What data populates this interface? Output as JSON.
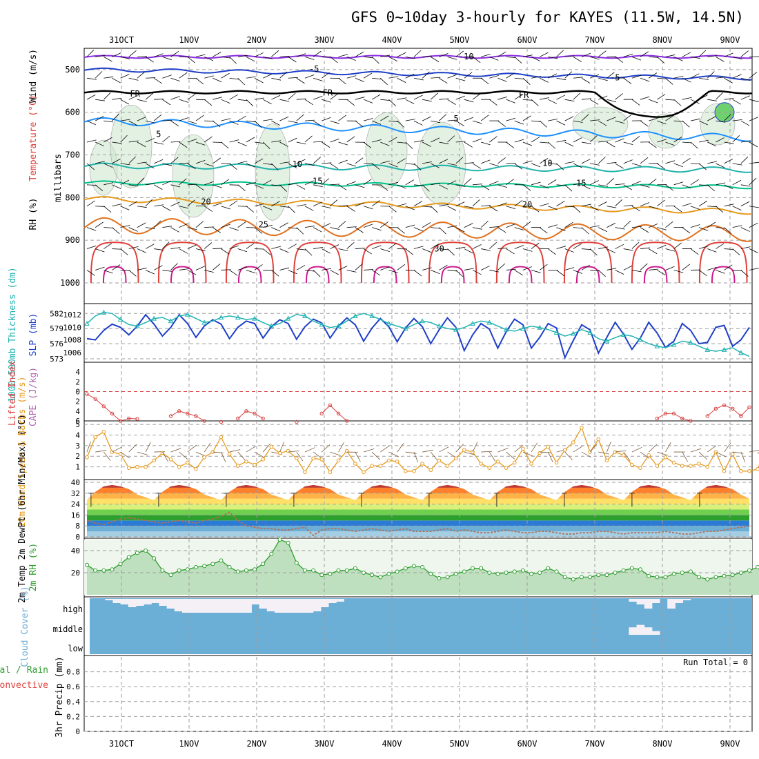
{
  "title": "GFS 0~10day 3-hourly for KAYES (11.5W, 14.5N)",
  "date_ticks": [
    "31OCT",
    "1NOV",
    "2NOV",
    "3NOV",
    "4NOV",
    "5NOV",
    "6NOV",
    "7NOV",
    "8NOV",
    "9NOV"
  ],
  "run_total_label": "Run Total = 0",
  "colors": {
    "grid": "#9e9e9e",
    "temp_10": "#8a2be2",
    "temp_5neg": "#1e3fc8",
    "freezing": "#000000",
    "temp_5": "#1e90ff",
    "temp_10pos": "#20b2aa",
    "temp_15": "#00c08a",
    "temp_20": "#e69a1e",
    "temp_25": "#e0701e",
    "temp_30": "#e0403a",
    "temp_35": "#cc1a8c",
    "slp": "#1e3fc8",
    "thickness": "#20b2b2",
    "lifted_index": "#d94040",
    "wind": "#e69a1e",
    "rh": "#2e9e2e",
    "cloud": "#6baed6"
  },
  "chart_data": [
    {
      "type": "line",
      "name": "upper-air cross section",
      "ylabel": "millibars",
      "ylabel_parts": [
        "RH (%)",
        "Temperature (°C)",
        "Wind (m/s)"
      ],
      "yticks": [
        500,
        600,
        700,
        800,
        900,
        1000
      ],
      "ylim": [
        450,
        1000
      ],
      "contour_labels": [
        {
          "text": "-10",
          "day": 5.1,
          "p": 468
        },
        {
          "text": "-5",
          "day": 2.85,
          "p": 497
        },
        {
          "text": "-5",
          "day": 7.3,
          "p": 517
        },
        {
          "text": "FR",
          "day": 0.2,
          "p": 555
        },
        {
          "text": "FR",
          "day": 3.05,
          "p": 553
        },
        {
          "text": "FR",
          "day": 5.95,
          "p": 558
        },
        {
          "text": "5",
          "day": 0.55,
          "p": 650
        },
        {
          "text": "5",
          "day": 4.95,
          "p": 613
        },
        {
          "text": "10",
          "day": 2.6,
          "p": 720
        },
        {
          "text": "10",
          "day": 6.3,
          "p": 718
        },
        {
          "text": "15",
          "day": 2.9,
          "p": 760
        },
        {
          "text": "15",
          "day": 6.8,
          "p": 765
        },
        {
          "text": "20",
          "day": 1.25,
          "p": 808
        },
        {
          "text": "20",
          "day": 6.0,
          "p": 815
        },
        {
          "text": "25",
          "day": 2.1,
          "p": 862
        },
        {
          "text": "30",
          "day": 4.7,
          "p": 918
        }
      ]
    },
    {
      "type": "line",
      "name": "SLP and thickness",
      "ylabel_left": "1000-500mb Thickness (dm)",
      "ylabel_right": "SLP (mb)",
      "yticks_thickness": [
        573,
        576,
        579,
        582
      ],
      "yticks_slp": [
        1006,
        1008,
        1010,
        1012
      ],
      "series": [
        {
          "name": "SLP",
          "values": [
            1008.2,
            1008.0,
            1009.5,
            1010.5,
            1010.0,
            1008.8,
            1010.2,
            1012.0,
            1010.5,
            1008.6,
            1010.0,
            1012.0,
            1010.6,
            1008.4,
            1010.2,
            1011.2,
            1010.5,
            1008.2,
            1010.0,
            1011.0,
            1010.6,
            1008.3,
            1010.1,
            1011.2,
            1010.6,
            1008.1,
            1010.1,
            1011.3,
            1010.7,
            1008.3,
            1010.2,
            1011.5,
            1010.4,
            1007.8,
            1009.9,
            1011.4,
            1010.1,
            1007.7,
            1009.9,
            1011.4,
            1010.1,
            1007.4,
            1009.6,
            1011.5,
            1010.0,
            1006.3,
            1008.8,
            1010.6,
            1009.7,
            1006.7,
            1009.3,
            1011.3,
            1010.4,
            1006.7,
            1008.4,
            1010.6,
            1009.9,
            1005.2,
            1007.9,
            1010.4,
            1009.6,
            1005.9,
            1008.4,
            1010.8,
            1008.9,
            1006.5,
            1008.3,
            1010.8,
            1009.1,
            1006.8,
            1007.8,
            1010.6,
            1009.5,
            1007.4,
            1007.6,
            1010.0,
            1010.3,
            1007.0,
            1008.0,
            1010.0
          ]
        },
        {
          "name": "Thickness",
          "values": [
            580.0,
            581.5,
            582.2,
            582.0,
            580.8,
            579.8,
            579.5,
            580.2,
            581.0,
            581.2,
            580.5,
            581.5,
            581.8,
            581.0,
            580.2,
            580.5,
            581.2,
            581.5,
            581.2,
            580.8,
            581.0,
            580.2,
            579.5,
            580.0,
            581.0,
            581.8,
            581.5,
            580.5,
            579.8,
            579.2,
            579.5,
            580.5,
            581.5,
            582.0,
            581.5,
            580.8,
            580.0,
            579.5,
            579.0,
            579.8,
            580.5,
            580.2,
            579.5,
            579.0,
            578.8,
            579.2,
            580.0,
            580.5,
            580.2,
            579.5,
            578.8,
            578.5,
            579.0,
            579.5,
            579.2,
            578.8,
            578.2,
            577.5,
            578.0,
            578.8,
            578.2,
            577.0,
            576.5,
            577.2,
            577.8,
            577.5,
            576.8,
            576.0,
            575.5,
            575.2,
            575.8,
            576.5,
            576.2,
            575.5,
            574.8,
            574.5,
            574.8,
            575.2,
            574.2,
            573.5
          ]
        }
      ]
    },
    {
      "type": "line",
      "name": "Lifted Index / CAPE",
      "ylabel": "Lifted Index",
      "ylabel2": "CAPE (J/kg)",
      "yticks": [
        -4,
        -2,
        0,
        2,
        4,
        6
      ],
      "tick_labels": [
        "4",
        "2",
        "0",
        "2",
        "4",
        "6"
      ],
      "ylim": [
        -6,
        6
      ],
      "values": [
        0.5,
        1.5,
        3.0,
        4.5,
        6.0,
        5.5,
        5.6,
        6.5,
        6.5,
        6.5,
        5.0,
        4.0,
        4.5,
        5.0,
        6.0,
        6.5,
        6.2,
        6.5,
        5.5,
        4.0,
        4.5,
        5.5,
        6.5,
        6.5,
        6.5,
        6.2,
        6.5,
        6.5,
        4.5,
        2.8,
        4.5,
        6.0,
        6.5,
        6.5,
        6.5,
        6.5,
        6.5,
        6.5,
        6.5,
        6.5,
        6.5,
        6.5,
        6.5,
        6.5,
        6.5,
        6.5,
        6.5,
        6.5,
        6.5,
        6.5,
        6.5,
        6.5,
        6.5,
        6.5,
        6.5,
        6.5,
        6.5,
        6.5,
        6.5,
        6.5,
        6.5,
        6.5,
        6.5,
        6.5,
        6.5,
        6.5,
        6.5,
        6.5,
        5.5,
        4.5,
        4.5,
        5.5,
        6.0,
        6.5,
        5.0,
        3.5,
        2.8,
        3.5,
        5.0,
        3.2
      ]
    },
    {
      "type": "line",
      "name": "10m Wind Speed & Barbs",
      "ylabel": "10m Wind Speed & Barbs (m/s)",
      "yticks": [
        1,
        2,
        3,
        4,
        5
      ],
      "ylim": [
        0,
        5
      ],
      "values": [
        1.9,
        3.8,
        4.3,
        2.4,
        2.2,
        0.9,
        1.0,
        1.0,
        1.6,
        2.3,
        1.7,
        1.0,
        1.4,
        0.8,
        1.9,
        2.4,
        3.8,
        2.2,
        1.1,
        1.5,
        1.2,
        1.7,
        2.9,
        2.3,
        2.5,
        1.8,
        0.5,
        1.8,
        1.7,
        0.5,
        1.6,
        2.5,
        1.3,
        0.5,
        1.1,
        1.1,
        1.6,
        1.5,
        0.6,
        0.6,
        1.3,
        0.7,
        1.6,
        1.1,
        1.8,
        2.6,
        2.4,
        1.3,
        0.9,
        1.5,
        0.9,
        1.4,
        2.7,
        1.3,
        2.3,
        2.9,
        1.4,
        2.6,
        3.3,
        4.7,
        2.4,
        3.6,
        1.6,
        2.4,
        2.1,
        1.2,
        0.9,
        2.1,
        1.1,
        1.9,
        1.4,
        1.1,
        1.1,
        1.3,
        1.0,
        2.4,
        0.6,
        2.2,
        0.6,
        0.6,
        0.8,
        2.8,
        1.5,
        4.2,
        2.3,
        1.1
      ]
    },
    {
      "type": "area",
      "name": "2m Temp / DewPt",
      "ylabel": "2m Temp 2m DewPt (6hr Min/Max) (°C)",
      "yticks": [
        0,
        8,
        16,
        24,
        32,
        40
      ],
      "ylim": [
        0,
        40
      ],
      "temp_values": [
        27,
        33,
        37,
        38,
        37,
        35,
        31,
        29,
        27,
        33,
        37,
        38,
        37,
        35,
        31,
        29,
        27,
        33,
        37,
        38,
        37,
        35,
        31,
        29,
        27,
        33,
        37,
        38,
        37,
        35,
        31,
        29,
        27,
        33,
        37,
        38,
        37,
        35,
        31,
        29,
        27,
        33,
        37,
        38,
        37,
        35,
        31,
        29,
        27,
        33,
        37,
        38,
        37,
        35,
        31,
        29,
        27,
        33,
        37,
        38,
        37,
        35,
        31,
        29,
        27,
        33,
        37,
        38,
        37,
        35,
        31,
        29,
        27,
        33,
        37,
        38,
        37,
        35,
        31,
        28
      ],
      "dewpoint_values": [
        12,
        10,
        9,
        11,
        13,
        14,
        13,
        12,
        11,
        10,
        11,
        12,
        11,
        10,
        12,
        13,
        15,
        18,
        12,
        8,
        7,
        6,
        6,
        5,
        5,
        6,
        7,
        1,
        5,
        6,
        6,
        5,
        4,
        5,
        6,
        5,
        4,
        5,
        6,
        4,
        4,
        4,
        5,
        6,
        4,
        5,
        4,
        3,
        3,
        4,
        5,
        4,
        3,
        3,
        4,
        4,
        3,
        2,
        2,
        3,
        3,
        4,
        4,
        3,
        2,
        3,
        3,
        3,
        3,
        4,
        3,
        2,
        2,
        3,
        4,
        4,
        5,
        6,
        7,
        8
      ],
      "max_markers": [
        32,
        32,
        32,
        32,
        32,
        32,
        32,
        32,
        32,
        32
      ],
      "min_markers": [
        22,
        22,
        22,
        22,
        22,
        22,
        22,
        22,
        22,
        22
      ]
    },
    {
      "type": "area",
      "name": "2m RH",
      "ylabel": "2m RH (%)",
      "yticks": [
        20,
        40
      ],
      "ylim": [
        0,
        50
      ],
      "values": [
        27,
        22,
        22,
        23,
        28,
        34,
        38,
        40,
        33,
        22,
        18,
        22,
        23,
        25,
        26,
        28,
        31,
        25,
        21,
        22,
        23,
        28,
        37,
        50,
        47,
        29,
        22,
        22,
        18,
        19,
        22,
        22,
        24,
        20,
        18,
        16,
        19,
        21,
        24,
        26,
        25,
        19,
        15,
        16,
        19,
        21,
        24,
        24,
        20,
        19,
        20,
        21,
        22,
        19,
        20,
        24,
        21,
        16,
        14,
        16,
        16,
        18,
        18,
        20,
        22,
        24,
        23,
        17,
        16,
        16,
        19,
        20,
        21,
        16,
        14,
        16,
        17,
        18,
        20,
        22,
        25,
        23,
        20,
        18,
        27,
        32
      ]
    },
    {
      "type": "bar",
      "name": "Cloud Cover",
      "ylabel": "Cloud Cover (%)",
      "levels": [
        "high",
        "middle",
        "low"
      ],
      "high_clear_fraction": [
        0.0,
        0.0,
        0.1,
        0.3,
        0.4,
        0.6,
        0.5,
        0.4,
        0.3,
        0.5,
        0.7,
        0.9,
        1.0,
        1.0,
        1.0,
        1.0,
        1.0,
        1.0,
        1.0,
        1.0,
        1.0,
        0.4,
        0.7,
        0.9,
        1.0,
        1.0,
        1.0,
        1.0,
        1.0,
        0.9,
        0.6,
        0.3,
        0.2,
        0.0,
        0.0,
        0.0,
        0.0,
        0.0,
        0.0,
        0.0,
        0.0,
        0.0,
        0.0,
        0.0,
        0.0,
        0.0,
        0.0,
        0.0,
        0.0,
        0.0,
        0.0,
        0.0,
        0.0,
        0.0,
        0.0,
        0.0,
        0.0,
        0.0,
        0.0,
        0.0,
        0.0,
        0.0,
        0.0,
        0.0,
        0.0,
        0.0,
        0.0,
        0.0,
        0.0,
        0.0,
        0.2,
        0.4,
        0.7,
        0.3,
        0.0,
        0.7,
        0.3,
        0.1,
        0.0,
        0.0,
        0.0,
        0.0,
        0.0,
        0.0,
        0.0,
        0.0
      ],
      "middle_clear_fraction": [
        0,
        0,
        0,
        0,
        0,
        0,
        0,
        0,
        0,
        0,
        0,
        0,
        0,
        0,
        0,
        0,
        0,
        0,
        0,
        0,
        0,
        0,
        0,
        0,
        0,
        0,
        0,
        0,
        0,
        0,
        0,
        0,
        0,
        0,
        0,
        0,
        0,
        0,
        0,
        0,
        0,
        0,
        0,
        0,
        0,
        0,
        0,
        0,
        0,
        0,
        0,
        0,
        0,
        0,
        0,
        0,
        0,
        0,
        0,
        0,
        0,
        0,
        0,
        0,
        0,
        0,
        0,
        0,
        0,
        0,
        0.6,
        0.8,
        0.6,
        0.3,
        0,
        0,
        0,
        0,
        0,
        0,
        0,
        0,
        0,
        0,
        0,
        0
      ]
    },
    {
      "type": "bar",
      "name": "3hr Precip",
      "ylabel": "3hr Precip (mm)",
      "legend_parts": [
        "Total / Rain",
        "Convective"
      ],
      "yticks": [
        0,
        0.2,
        0.4,
        0.6,
        0.8
      ],
      "ylim": [
        0,
        1
      ],
      "values": []
    }
  ]
}
